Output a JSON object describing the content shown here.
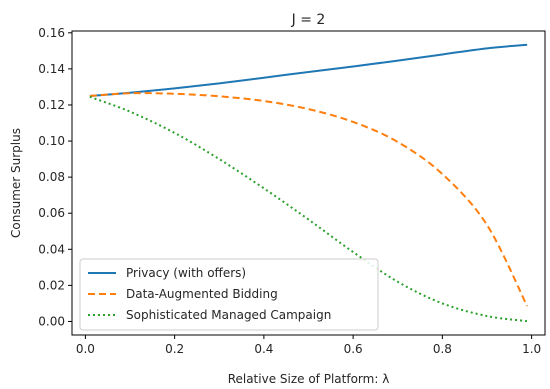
{
  "chart_data": {
    "type": "line",
    "title": "J = 2",
    "xlabel": "Relative Size of Platform: λ",
    "ylabel": "Consumer Surplus",
    "xlim": [
      -0.03,
      1.03
    ],
    "ylim": [
      -0.0075,
      0.161
    ],
    "xticks": [
      0.0,
      0.2,
      0.4,
      0.6,
      0.8,
      1.0
    ],
    "xtick_labels": [
      "0.0",
      "0.2",
      "0.4",
      "0.6",
      "0.8",
      "1.0"
    ],
    "yticks": [
      0.0,
      0.02,
      0.04,
      0.06,
      0.08,
      0.1,
      0.12,
      0.14,
      0.16
    ],
    "ytick_labels": [
      "0.00",
      "0.02",
      "0.04",
      "0.06",
      "0.08",
      "0.10",
      "0.12",
      "0.14",
      "0.16"
    ],
    "grid": false,
    "legend_position": "bottom-left",
    "x": [
      0.01,
      0.1,
      0.2,
      0.3,
      0.4,
      0.5,
      0.6,
      0.7,
      0.8,
      0.9,
      0.99
    ],
    "series": [
      {
        "name": "Privacy (with offers)",
        "style": "solid",
        "color": "#1f77b4",
        "values": [
          0.125,
          0.1268,
          0.1292,
          0.132,
          0.1351,
          0.1383,
          0.1413,
          0.1446,
          0.148,
          0.1514,
          0.1534
        ]
      },
      {
        "name": "Data-Augmented Bidding",
        "style": "dashed",
        "color": "#ff7f0e",
        "values": [
          0.125,
          0.1265,
          0.1262,
          0.1248,
          0.1222,
          0.1177,
          0.1106,
          0.0995,
          0.0817,
          0.0535,
          0.0085
        ]
      },
      {
        "name": "Sophisticated Managed Campaign",
        "style": "dotted",
        "color": "#2ca02c",
        "values": [
          0.1245,
          0.1163,
          0.1045,
          0.09,
          0.0738,
          0.0565,
          0.0385,
          0.022,
          0.01,
          0.003,
          0.0002
        ]
      }
    ]
  }
}
